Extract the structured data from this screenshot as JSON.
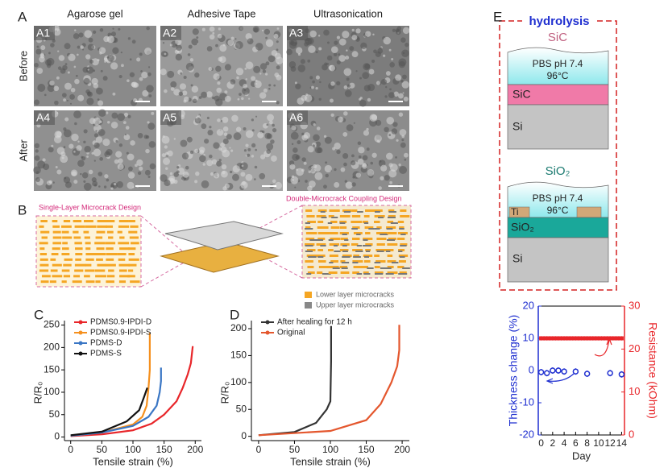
{
  "panels": {
    "A": {
      "label": "A",
      "columns": [
        "Agarose gel",
        "Adhesive Tape",
        "Ultrasonication"
      ],
      "rows": [
        "Before",
        "After"
      ],
      "images": [
        "A1",
        "A2",
        "A3",
        "A4",
        "A5",
        "A6"
      ]
    },
    "B": {
      "label": "B",
      "left_title": "Single-Layer Microcrack Design",
      "right_title": "Double-Microcrack Coupling Design",
      "legend": [
        "Lower layer microcracks",
        "Upper layer microcracks"
      ]
    },
    "E": {
      "label": "E",
      "title": "hydrolysis",
      "sic": {
        "title": "SiC",
        "solution": "PBS pH 7.4",
        "temperature": "96°C",
        "layer": "SiC",
        "substrate": "Si"
      },
      "sio2": {
        "title": "SiO₂",
        "solution": "PBS pH 7.4",
        "temperature": "96°C",
        "electrode": "Ti",
        "layer": "SiO₂",
        "substrate": "Si"
      }
    }
  },
  "chart_data": [
    {
      "type": "line",
      "label": "C",
      "x_label": "Tensile strain (%)",
      "y_label": "R/R₀",
      "xlim": [
        -10,
        210
      ],
      "ylim": [
        -8,
        260
      ],
      "xticks": [
        0,
        50,
        100,
        150,
        200
      ],
      "yticks": [
        0,
        50,
        100,
        150,
        200,
        250
      ],
      "series": [
        {
          "name": "PDMS0.9-IPDI-D",
          "color": "#e8262a",
          "x": [
            0,
            50,
            100,
            130,
            150,
            170,
            180,
            188,
            193,
            196
          ],
          "values": [
            2,
            6,
            15,
            30,
            50,
            80,
            110,
            140,
            165,
            203
          ]
        },
        {
          "name": "PDMS0.9-IPDI-S",
          "color": "#f5901e",
          "x": [
            0,
            50,
            100,
            115,
            122,
            125,
            127,
            127
          ],
          "values": [
            3,
            10,
            28,
            45,
            70,
            110,
            150,
            233
          ]
        },
        {
          "name": "PDMS-D",
          "color": "#3a76c4",
          "x": [
            0,
            50,
            100,
            125,
            138,
            143,
            145,
            145
          ],
          "values": [
            3,
            10,
            25,
            45,
            70,
            100,
            125,
            155
          ]
        },
        {
          "name": "PDMS-S",
          "color": "#111111",
          "x": [
            0,
            50,
            90,
            110,
            118,
            123
          ],
          "values": [
            4,
            12,
            35,
            60,
            90,
            110
          ]
        }
      ]
    },
    {
      "type": "line",
      "label": "D",
      "x_label": "Tensile strain (%)",
      "y_label": "R/R₀",
      "xlim": [
        -10,
        210
      ],
      "ylim": [
        -8,
        215
      ],
      "xticks": [
        0,
        50,
        100,
        150,
        200
      ],
      "yticks": [
        0,
        50,
        100,
        150,
        200
      ],
      "series": [
        {
          "name": "After healing for 12 h",
          "color": "#333333",
          "x": [
            0,
            50,
            80,
            95,
            100,
            101,
            101
          ],
          "values": [
            2,
            8,
            25,
            50,
            65,
            140,
            205
          ]
        },
        {
          "name": "Original",
          "color": "#e4572e",
          "x": [
            0,
            100,
            150,
            170,
            185,
            193,
            196,
            196
          ],
          "values": [
            2,
            10,
            30,
            60,
            100,
            130,
            160,
            207
          ]
        }
      ]
    },
    {
      "type": "scatter",
      "x_label": "Day",
      "y_label": "Thickness change (%)",
      "y2_label": "Resistance (kOhm)",
      "xlim": [
        -0.5,
        14.5
      ],
      "ylim": [
        -20,
        20
      ],
      "y2lim": [
        0,
        30
      ],
      "xticks": [
        0,
        2,
        4,
        6,
        8,
        10,
        12,
        14
      ],
      "yticks": [
        -20,
        -10,
        0,
        10,
        20
      ],
      "y2ticks": [
        0,
        10,
        20,
        30
      ],
      "series": [
        {
          "color": "#1f2fd0",
          "x": [
            0,
            1,
            2,
            3,
            4,
            6,
            8,
            12,
            14
          ],
          "values": [
            -0.5,
            -0.8,
            0,
            0,
            -0.3,
            -0.3,
            -1,
            -0.8,
            -1.2
          ],
          "errors": [
            1,
            1,
            1,
            1,
            1,
            1,
            1,
            1,
            1
          ]
        },
        {
          "color": "#e8262a",
          "axis": "y2",
          "x": [
            0,
            0.5,
            1,
            1.5,
            2,
            2.5,
            3,
            3.5,
            4,
            4.5,
            5,
            5.5,
            6,
            6.5,
            7,
            7.5,
            8,
            8.5,
            9,
            9.5,
            10,
            10.5,
            11,
            11.5,
            12,
            12.5,
            13,
            13.5,
            14
          ],
          "values": [
            22.5,
            22.5,
            22.5,
            22.5,
            22.5,
            22.5,
            22.5,
            22.5,
            22.5,
            22.5,
            22.5,
            22.5,
            22.5,
            22.5,
            22.5,
            22.5,
            22.5,
            22.5,
            22.5,
            22.5,
            22.5,
            22.5,
            22.5,
            22.5,
            22.5,
            22.5,
            22.5,
            22.5,
            22.5
          ],
          "errors": [
            0.5,
            0.5,
            0.5,
            0.5,
            0.5,
            0.5,
            0.5,
            0.5,
            0.5,
            0.5,
            0.5,
            0.5,
            0.5,
            0.5,
            0.5,
            0.5,
            0.5,
            0.5,
            0.5,
            0.5,
            0.5,
            0.5,
            0.5,
            0.5,
            0.5,
            0.5,
            0.5,
            0.5,
            0.5
          ]
        }
      ]
    }
  ]
}
